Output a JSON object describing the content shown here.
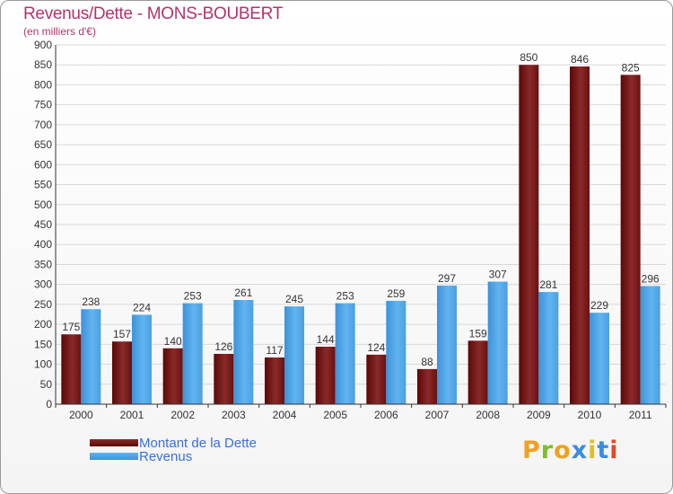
{
  "chart_data": {
    "type": "bar",
    "title": "Revenus/Dette - MONS-BOUBERT",
    "subtitle": "(en milliers d'€)",
    "xlabel": "",
    "ylabel": "",
    "ylim": [
      0,
      900
    ],
    "yticks": [
      0,
      50,
      100,
      150,
      200,
      250,
      300,
      350,
      400,
      450,
      500,
      550,
      600,
      650,
      700,
      750,
      800,
      850,
      900
    ],
    "grid": true,
    "categories": [
      "2000",
      "2001",
      "2002",
      "2003",
      "2004",
      "2005",
      "2006",
      "2007",
      "2008",
      "2009",
      "2010",
      "2011"
    ],
    "series": [
      {
        "name": "Montant de la Dette",
        "color": "#7a1a1a",
        "values": [
          175,
          157,
          140,
          126,
          117,
          144,
          124,
          88,
          159,
          850,
          846,
          825
        ]
      },
      {
        "name": "Revenus",
        "color": "#4aa3e8",
        "values": [
          238,
          224,
          253,
          261,
          245,
          253,
          259,
          297,
          307,
          281,
          229,
          296
        ]
      }
    ],
    "legend_position": "bottom-left"
  },
  "logo": {
    "text": "Proxiti"
  }
}
